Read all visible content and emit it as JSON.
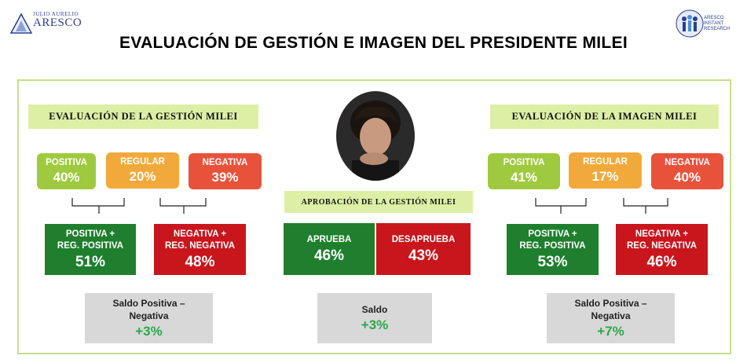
{
  "header": {
    "logo_left_sub": "JULIO AURELIO",
    "logo_left_main": "ARESCO",
    "logo_right_lines": [
      "ARESCO",
      "INSTANT",
      "RESEARCH"
    ],
    "title": "EVALUACIÓN DE GESTIÓN E IMAGEN DEL PRESIDENTE MILEI"
  },
  "colors": {
    "light_green": "#9fca3f",
    "orange": "#f2a93b",
    "light_red": "#e8523b",
    "dark_green": "#1f7f2e",
    "dark_red": "#c8161c",
    "header_bg": "#dcefa5",
    "saldo_value": "#2aa84a"
  },
  "gestion": {
    "header": "EVALUACIÓN DE LA GESTIÓN MILEI",
    "positiva": {
      "label": "POSITIVA",
      "value": "40%"
    },
    "regular": {
      "label": "REGULAR",
      "value": "20%"
    },
    "negativa": {
      "label": "NEGATIVA",
      "value": "39%"
    },
    "pos_reg": {
      "label1": "POSITIVA +",
      "label2": "REG. POSITIVA",
      "value": "51%"
    },
    "neg_reg": {
      "label1": "NEGATIVA +",
      "label2": "REG. NEGATIVA",
      "value": "48%"
    },
    "saldo": {
      "label1": "Saldo Positiva –",
      "label2": "Negativa",
      "value": "+3%"
    }
  },
  "aprobacion": {
    "header": "APROBACIÓN DE LA GESTIÓN MILEI",
    "aprueba": {
      "label": "APRUEBA",
      "value": "46%"
    },
    "desaprueba": {
      "label": "DESAPRUEBA",
      "value": "43%"
    },
    "saldo": {
      "label": "Saldo",
      "value": "+3%"
    }
  },
  "imagen": {
    "header": "EVALUACIÓN DE LA IMAGEN MILEI",
    "positiva": {
      "label": "POSITIVA",
      "value": "41%"
    },
    "regular": {
      "label": "REGULAR",
      "value": "17%"
    },
    "negativa": {
      "label": "NEGATIVA",
      "value": "40%"
    },
    "pos_reg": {
      "label1": "POSITIVA +",
      "label2": "REG. POSITIVA",
      "value": "53%"
    },
    "neg_reg": {
      "label1": "NEGATIVA +",
      "label2": "REG. NEGATIVA",
      "value": "46%"
    },
    "saldo": {
      "label1": "Saldo Positiva –",
      "label2": "Negativa",
      "value": "+7%"
    }
  }
}
